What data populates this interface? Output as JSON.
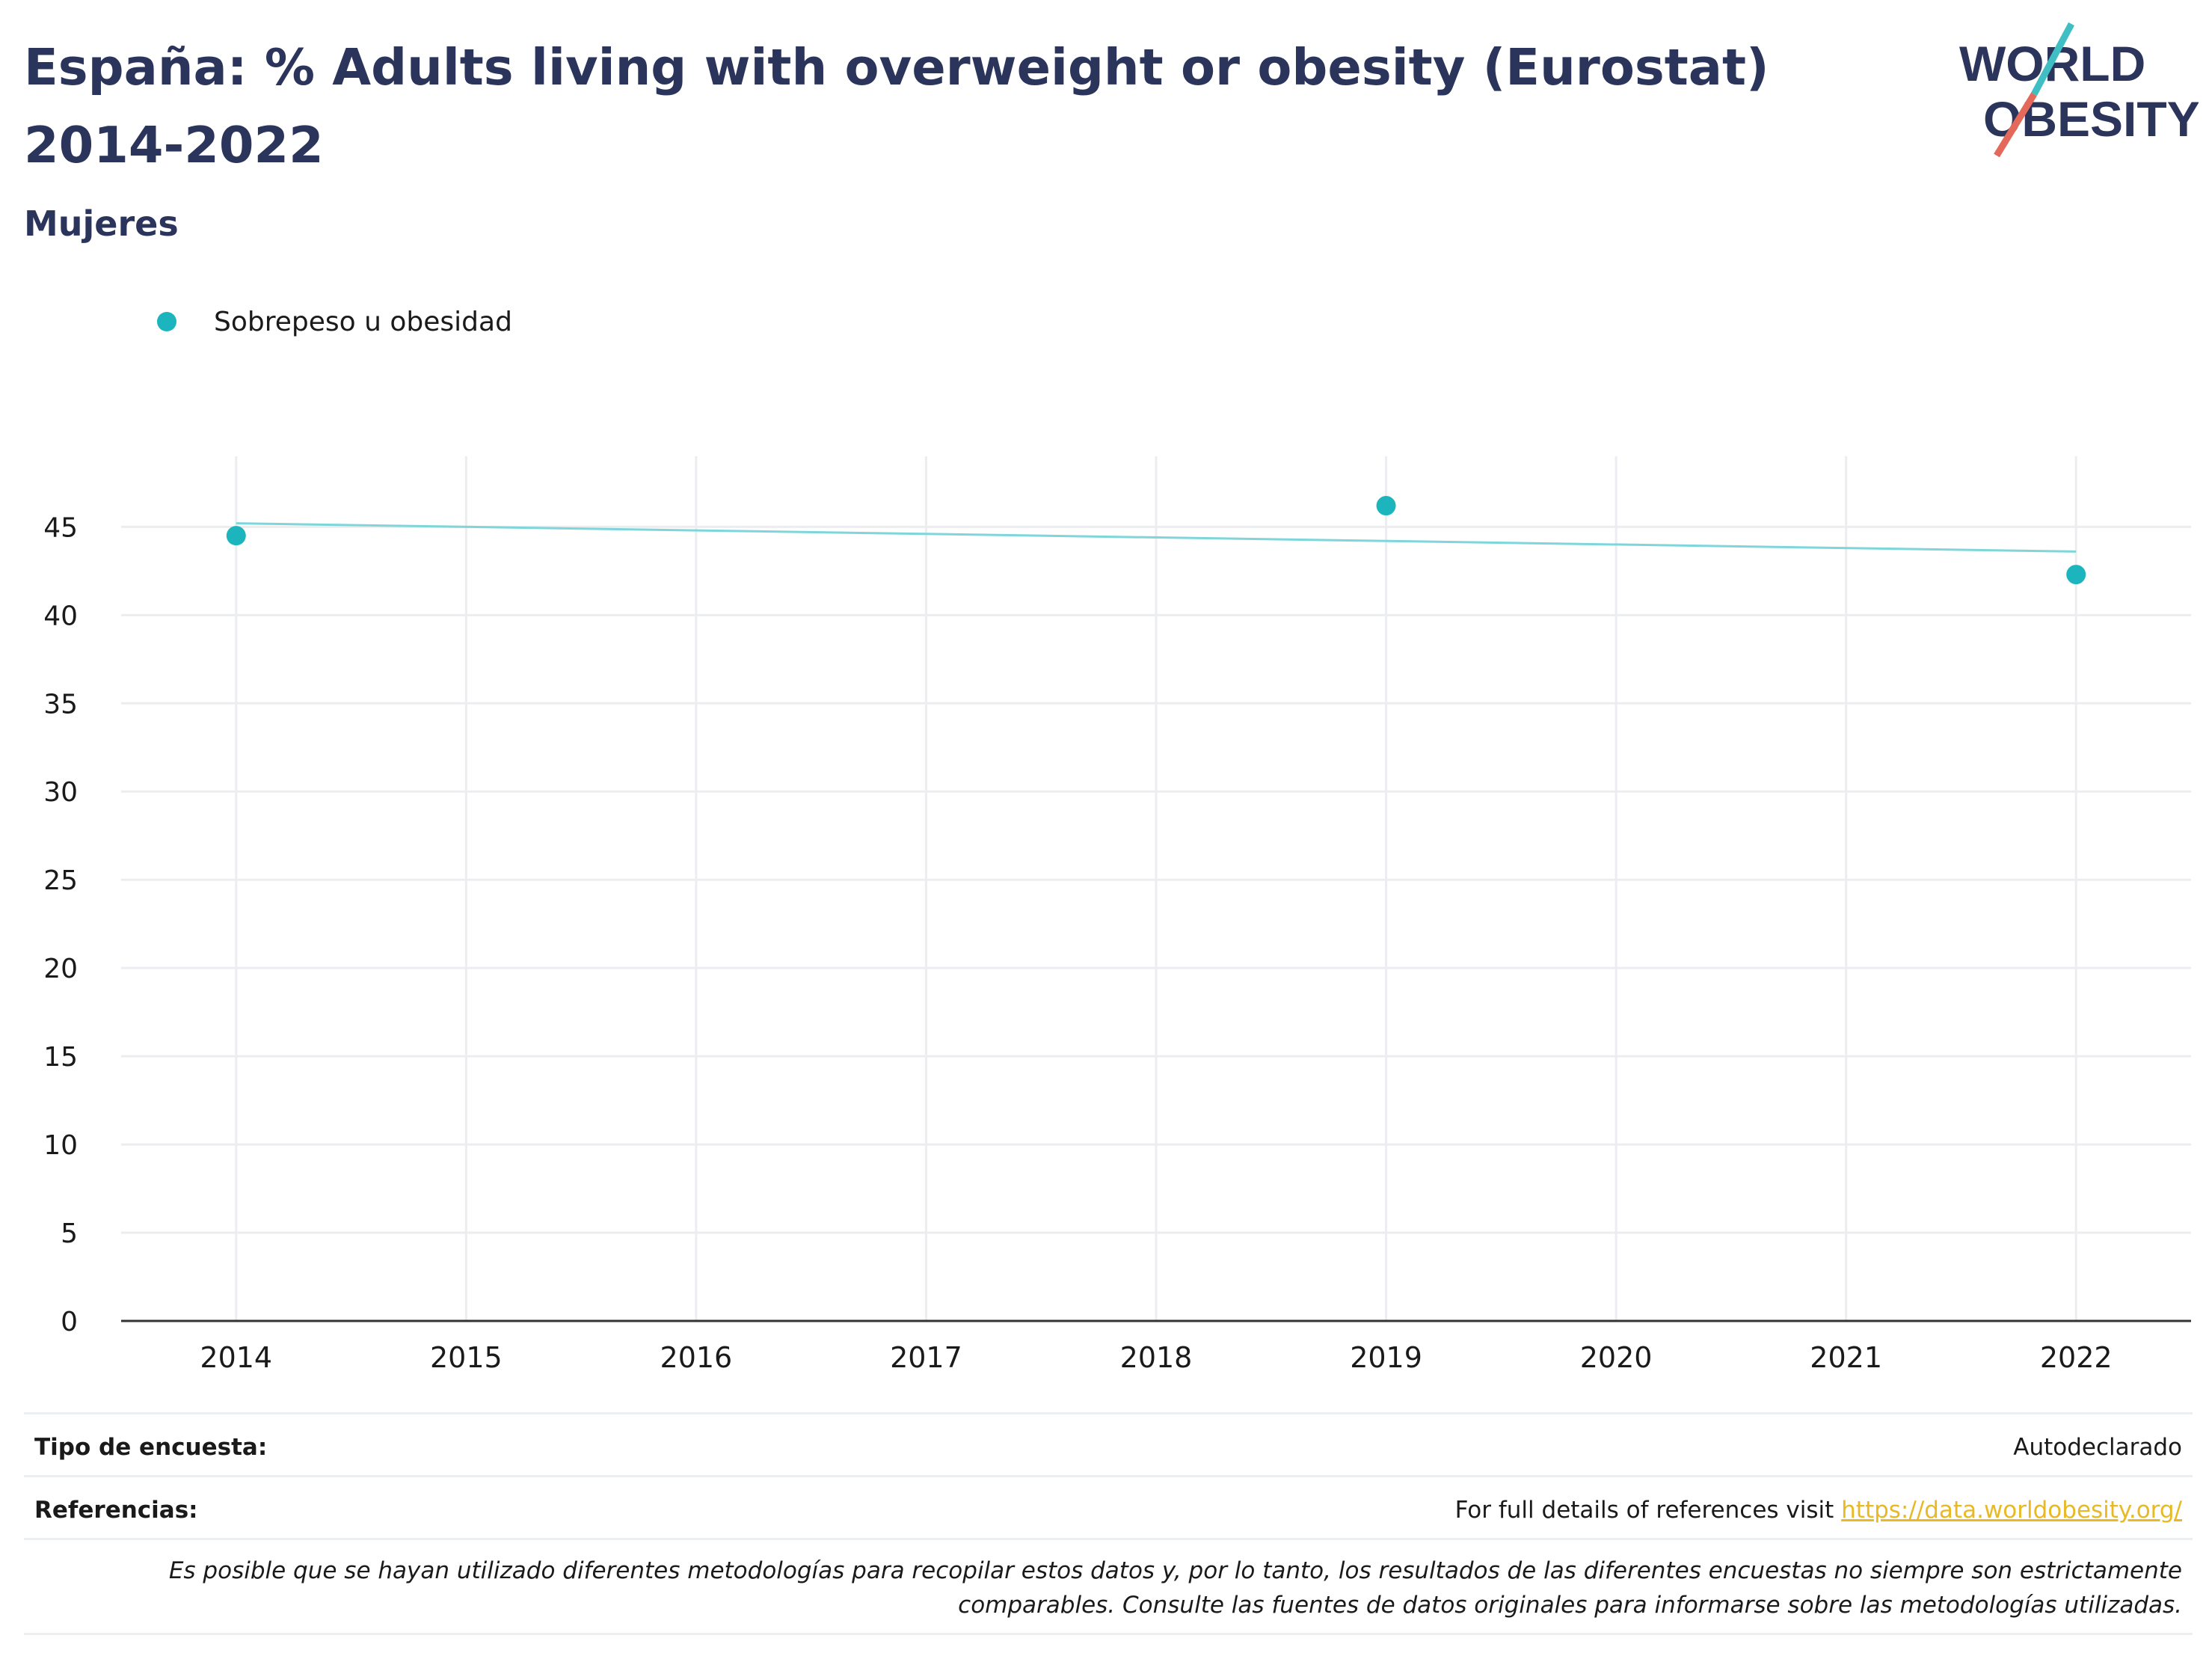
{
  "header": {
    "title": "España: % Adults living with overweight or obesity (Eurostat) 2014-2022",
    "subtitle": "Mujeres",
    "logo_line1": "WORLD",
    "logo_line2": "OBESITY"
  },
  "legend": {
    "label": "Sobrepeso u obesidad"
  },
  "chart_data": {
    "type": "scatter",
    "title": "España: % Adults living with overweight or obesity (Eurostat) 2014-2022",
    "subtitle": "Mujeres",
    "xlabel": "",
    "ylabel": "",
    "x_ticks": [
      2014,
      2015,
      2016,
      2017,
      2018,
      2019,
      2020,
      2021,
      2022
    ],
    "y_ticks": [
      0,
      5,
      10,
      15,
      20,
      25,
      30,
      35,
      40,
      45
    ],
    "xlim": [
      2013.5,
      2022.5
    ],
    "ylim": [
      0,
      49
    ],
    "grid": true,
    "legend_position": "top-left",
    "series": [
      {
        "name": "Sobrepeso u obesidad",
        "color": "#1cb5bd",
        "points": [
          {
            "x": 2014,
            "y": 44.5
          },
          {
            "x": 2019,
            "y": 46.2
          },
          {
            "x": 2022,
            "y": 42.3
          }
        ],
        "trendline": {
          "color": "#7fd6da",
          "points": [
            {
              "x": 2014,
              "y": 45.2
            },
            {
              "x": 2022,
              "y": 43.6
            }
          ]
        }
      }
    ]
  },
  "footer": {
    "survey_type_label": "Tipo de encuesta:",
    "survey_type_value": "Autodeclarado",
    "references_label": "Referencias:",
    "references_text": "For full details of references visit ",
    "references_link": "https://data.worldobesity.org/",
    "note": "Es posible que se hayan utilizado diferentes metodologías para recopilar estos datos y, por lo tanto, los resultados de las diferentes encuestas no siempre son estrictamente comparables. Consulte las fuentes de datos originales para informarse sobre las metodologías utilizadas."
  }
}
